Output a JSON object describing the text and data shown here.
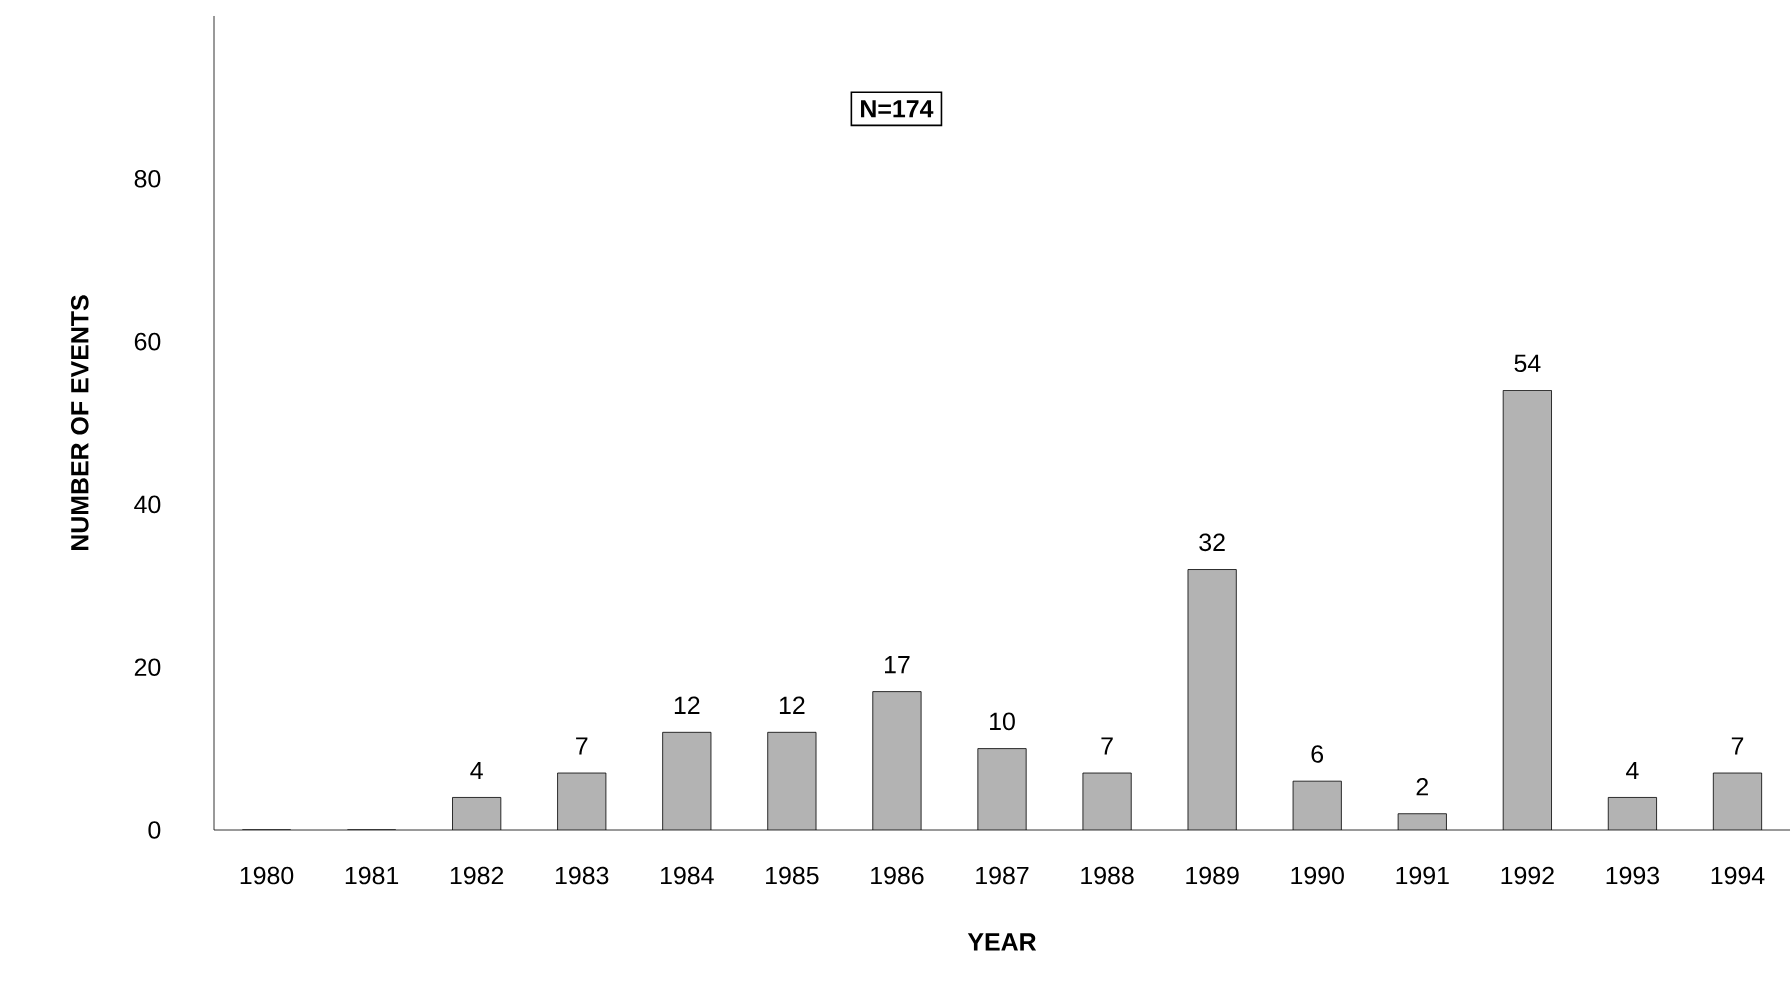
{
  "chart_data": {
    "type": "bar",
    "xlabel": "YEAR",
    "ylabel": "NUMBER OF EVENTS",
    "categories": [
      "1980",
      "1981",
      "1982",
      "1983",
      "1984",
      "1985",
      "1986",
      "1987",
      "1988",
      "1989",
      "1990",
      "1991",
      "1992",
      "1993",
      "1994"
    ],
    "values": [
      0,
      0,
      4,
      7,
      12,
      12,
      17,
      10,
      7,
      32,
      6,
      2,
      54,
      4,
      7
    ],
    "value_labels": [
      null,
      null,
      "4",
      "7",
      "12",
      "12",
      "17",
      "10",
      "7",
      "32",
      "6",
      "2",
      "54",
      "4",
      "7"
    ],
    "color": "#b3b3b3",
    "ylim": [
      0,
      100
    ],
    "yticks": [
      0,
      20,
      40,
      60,
      80
    ],
    "grid": false,
    "annotations": [
      "N=174"
    ]
  }
}
